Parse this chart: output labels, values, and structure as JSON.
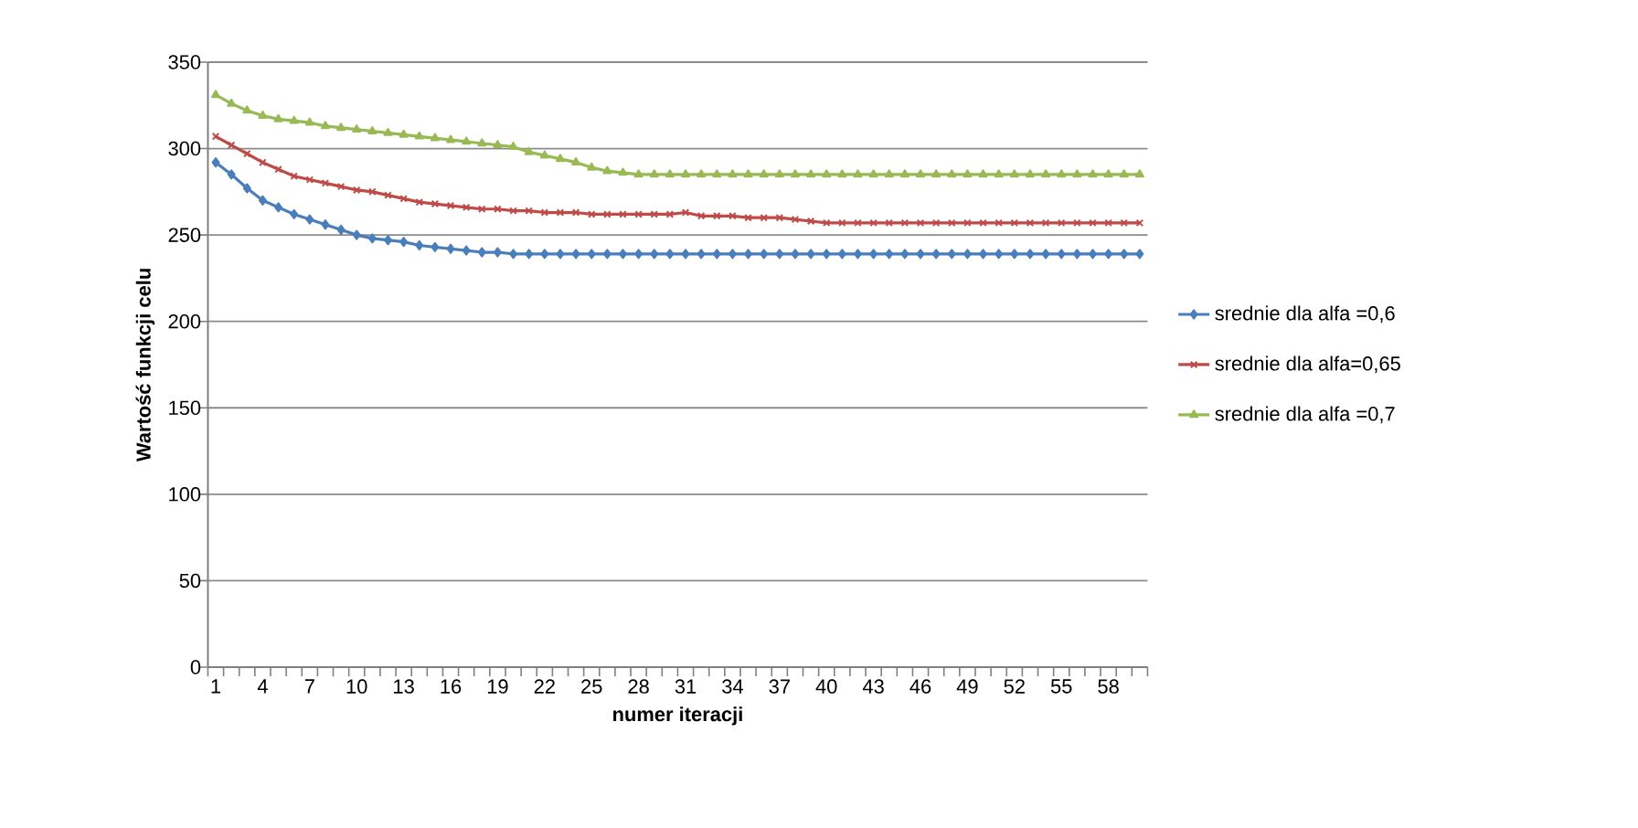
{
  "chart_data": {
    "type": "line",
    "xlabel": "numer iteracji",
    "ylabel": "Wartość funkcji celu",
    "categories": [
      "1",
      null,
      null,
      "4",
      null,
      null,
      "7",
      null,
      null,
      "10",
      null,
      null,
      "13",
      null,
      null,
      "16",
      null,
      null,
      "19",
      null,
      null,
      "22",
      null,
      null,
      "25",
      null,
      null,
      "28",
      null,
      null,
      "31",
      null,
      null,
      "34",
      null,
      null,
      "37",
      null,
      null,
      "40",
      null,
      null,
      "43",
      null,
      null,
      "46",
      null,
      null,
      "49",
      null,
      null,
      "52",
      null,
      null,
      "55",
      null,
      null,
      "58",
      null,
      null
    ],
    "ylim": [
      0,
      350
    ],
    "yticks": [
      0,
      50,
      100,
      150,
      200,
      250,
      300,
      350
    ],
    "grid": "y",
    "legend": "right",
    "line_style": "solid",
    "series": [
      {
        "name": "srednie dla alfa =0,6",
        "color": "#4a7ebb",
        "marker": "diamond",
        "values": [
          292,
          285,
          277,
          270,
          266,
          262,
          259,
          256,
          253,
          250,
          248,
          247,
          246,
          244,
          243,
          242,
          241,
          240,
          240,
          239,
          239,
          239,
          239,
          239,
          239,
          239,
          239,
          239,
          239,
          239,
          239,
          239,
          239,
          239,
          239,
          239,
          239,
          239,
          239,
          239,
          239,
          239,
          239,
          239,
          239,
          239,
          239,
          239,
          239,
          239,
          239,
          239,
          239,
          239,
          239,
          239,
          239,
          239,
          239,
          239
        ]
      },
      {
        "name": "srednie dla alfa=0,65",
        "color": "#be4b48",
        "marker": "cross",
        "values": [
          307,
          302,
          297,
          292,
          288,
          284,
          282,
          280,
          278,
          276,
          275,
          273,
          271,
          269,
          268,
          267,
          266,
          265,
          265,
          264,
          264,
          263,
          263,
          263,
          262,
          262,
          262,
          262,
          262,
          262,
          263,
          261,
          261,
          261,
          260,
          260,
          260,
          259,
          258,
          257,
          257,
          257,
          257,
          257,
          257,
          257,
          257,
          257,
          257,
          257,
          257,
          257,
          257,
          257,
          257,
          257,
          257,
          257,
          257,
          257
        ]
      },
      {
        "name": "srednie dla alfa =0,7",
        "color": "#98b954",
        "marker": "triangle",
        "values": [
          331,
          326,
          322,
          319,
          317,
          316,
          315,
          313,
          312,
          311,
          310,
          309,
          308,
          307,
          306,
          305,
          304,
          303,
          302,
          301,
          298,
          296,
          294,
          292,
          289,
          287,
          286,
          285,
          285,
          285,
          285,
          285,
          285,
          285,
          285,
          285,
          285,
          285,
          285,
          285,
          285,
          285,
          285,
          285,
          285,
          285,
          285,
          285,
          285,
          285,
          285,
          285,
          285,
          285,
          285,
          285,
          285,
          285,
          285,
          285
        ]
      }
    ]
  }
}
